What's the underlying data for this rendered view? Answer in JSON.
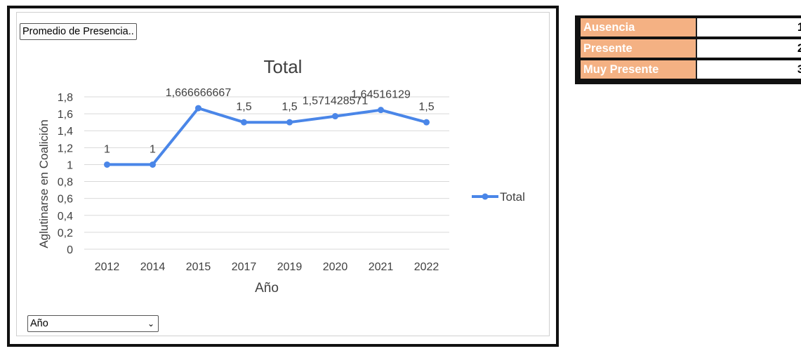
{
  "filters": {
    "value_field_label": "Promedio de Presencia..",
    "axis_field_label": "Año"
  },
  "icons": {
    "dropdown": "chevron-down-icon"
  },
  "colors": {
    "series": "#4a86e8",
    "legend_header_bg": "#f4b183"
  },
  "chart_data": {
    "type": "line",
    "title": "Total",
    "xlabel": "Año",
    "ylabel": "Aglutinarse en Coalición",
    "categories": [
      "2012",
      "2014",
      "2015",
      "2017",
      "2019",
      "2020",
      "2021",
      "2022"
    ],
    "series": [
      {
        "name": "Total",
        "values": [
          1,
          1,
          1.666666667,
          1.5,
          1.5,
          1.571428571,
          1.64516129,
          1.5
        ]
      }
    ],
    "data_labels": [
      "1",
      "1",
      "1,666666667",
      "1,5",
      "1,5",
      "1,571428571",
      "1,64516129",
      "1,5"
    ],
    "ylim": [
      0,
      1.8
    ],
    "yticks": [
      "0",
      "0,2",
      "0,4",
      "0,6",
      "0,8",
      "1",
      "1,2",
      "1,4",
      "1,6",
      "1,8"
    ],
    "grid": true,
    "legend_position": "right"
  },
  "scale_legend": [
    {
      "label": "Ausencia",
      "value": "1"
    },
    {
      "label": "Presente",
      "value": "2"
    },
    {
      "label": "Muy Presente",
      "value": "3"
    }
  ]
}
